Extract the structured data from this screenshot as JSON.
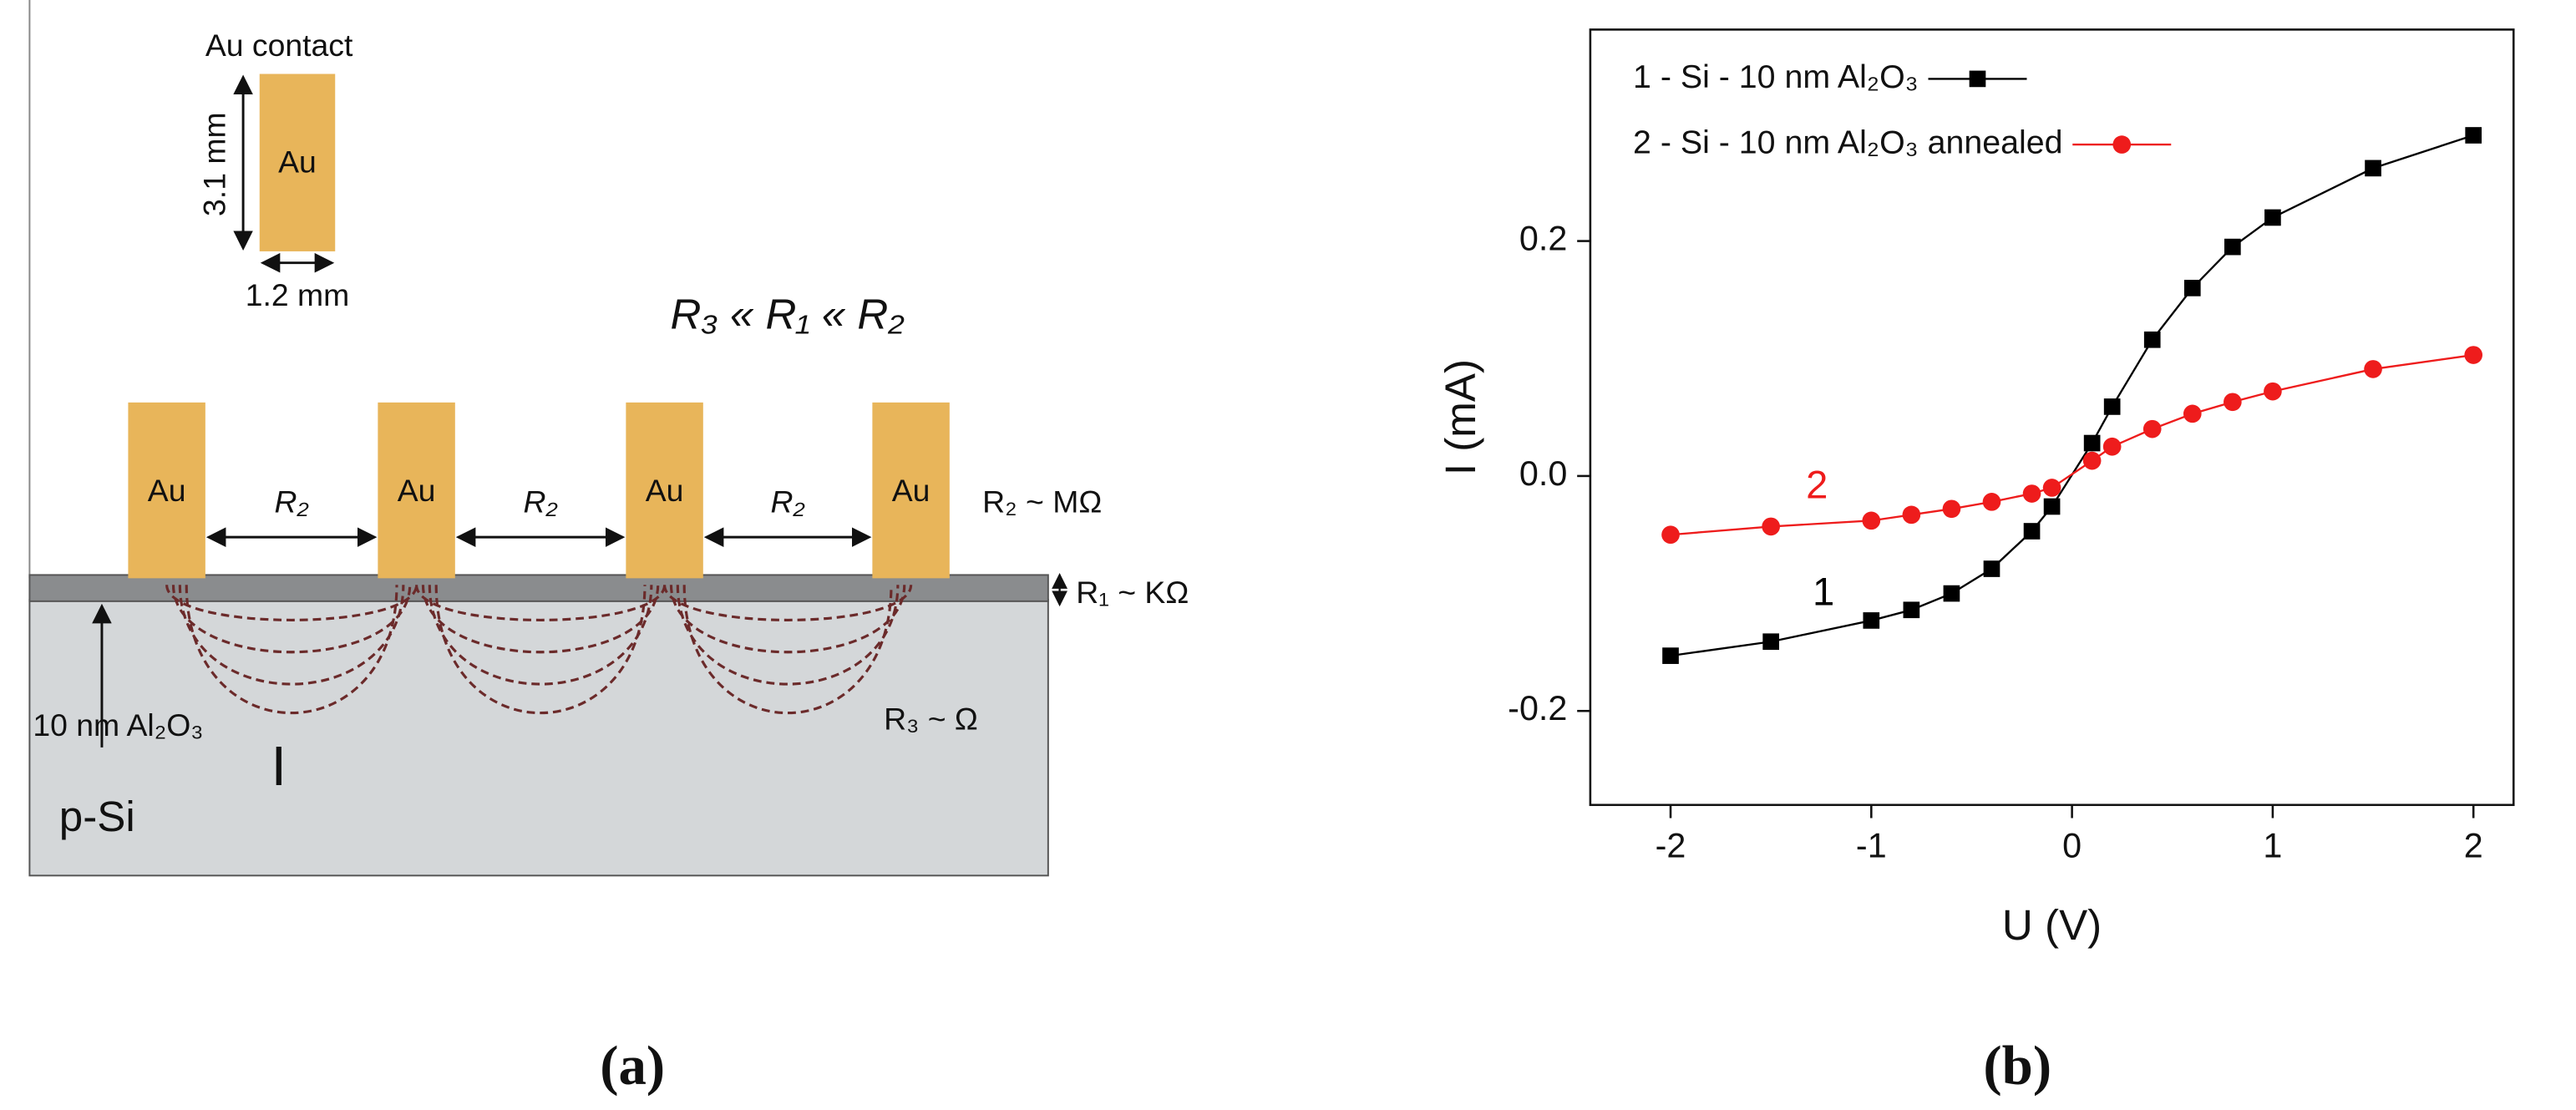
{
  "diagram": {
    "contact_title": "Au contact",
    "contact_label": "Au",
    "height_label": "3.1 mm",
    "width_label": "1.2 mm",
    "relation": "R₃ « R₁ « R₂",
    "pads": [
      "Au",
      "Au",
      "Au",
      "Au"
    ],
    "gaps": [
      "R₂",
      "R₂",
      "R₂"
    ],
    "r2_label": "R₂ ~ MΩ",
    "r1_label": "R₁ ~ KΩ",
    "r3_label": "R₃ ~ Ω",
    "oxide_label": "10 nm Al₂O₃",
    "current_label": "I",
    "substrate_label": "p-Si"
  },
  "captions": [
    "(a)",
    "(b)"
  ],
  "chart_data": {
    "type": "line",
    "xlabel": "U (V)",
    "ylabel": "I (mA)",
    "x": [
      -2,
      -1.5,
      -1,
      -0.8,
      -0.6,
      -0.4,
      -0.2,
      -0.1,
      0.1,
      0.2,
      0.4,
      0.6,
      0.8,
      1,
      1.5,
      2
    ],
    "series": [
      {
        "name": "1 - Si - 10 nm Al₂O₃",
        "color": "#000000",
        "marker": "square",
        "values": [
          -0.153,
          -0.141,
          -0.123,
          -0.114,
          -0.1,
          -0.079,
          -0.047,
          -0.026,
          0.028,
          0.059,
          0.116,
          0.16,
          0.195,
          0.22,
          0.262,
          0.29
        ]
      },
      {
        "name": "2 - Si - 10 nm Al₂O₃ annealed",
        "color": "#ee1c1c",
        "marker": "circle",
        "values": [
          -0.05,
          -0.043,
          -0.038,
          -0.033,
          -0.028,
          -0.022,
          -0.015,
          -0.01,
          0.013,
          0.025,
          0.04,
          0.053,
          0.063,
          0.072,
          0.091,
          0.103
        ]
      }
    ],
    "annotations": [
      {
        "text": "1",
        "color": "#000000"
      },
      {
        "text": "2",
        "color": "#ee1c1c"
      }
    ],
    "xlim": [
      -2.4,
      2.2
    ],
    "ylim": [
      -0.28,
      0.38
    ],
    "xticks": [
      -2,
      -1,
      0,
      1,
      2
    ],
    "yticks": [
      -0.2,
      {
        "value": 0,
        "label": "0.0"
      },
      0.2
    ],
    "legend": "upper left"
  }
}
